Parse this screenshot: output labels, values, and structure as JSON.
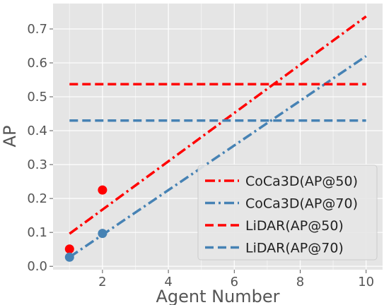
{
  "chart_data": {
    "type": "line",
    "title": "",
    "xlabel": "Agent Number",
    "ylabel": "AP",
    "xlim": [
      0.5,
      10.5
    ],
    "ylim": [
      -0.01,
      0.775
    ],
    "x_ticks": [
      2,
      4,
      6,
      8,
      10
    ],
    "x_tick_labels": [
      "2",
      "4",
      "6",
      "8",
      "10"
    ],
    "y_ticks": [
      0.0,
      0.1,
      0.2,
      0.3,
      0.4,
      0.5,
      0.6,
      0.7
    ],
    "y_tick_labels": [
      "0.0",
      "0.1",
      "0.2",
      "0.3",
      "0.4",
      "0.5",
      "0.6",
      "0.7"
    ],
    "grid": true,
    "legend_position": "lower-right",
    "series": [
      {
        "name": "CoCa3D(AP@50)",
        "style": "dashdot",
        "color": "#ff0000",
        "x": [
          1,
          10
        ],
        "y": [
          0.096,
          0.737
        ]
      },
      {
        "name": "CoCa3D(AP@70)",
        "style": "dashdot",
        "color": "#4682b4",
        "x": [
          1,
          10
        ],
        "y": [
          0.027,
          0.62
        ]
      },
      {
        "name": "LiDAR(AP@50)",
        "style": "dashed",
        "color": "#ff0000",
        "x": [
          1,
          10
        ],
        "y": [
          0.537,
          0.537
        ]
      },
      {
        "name": "LiDAR(AP@70)",
        "style": "dashed",
        "color": "#4682b4",
        "x": [
          1,
          10
        ],
        "y": [
          0.43,
          0.43
        ]
      }
    ],
    "points": [
      {
        "color": "#ff0000",
        "x": [
          1,
          2
        ],
        "y": [
          0.051,
          0.225
        ]
      },
      {
        "color": "#4682b4",
        "x": [
          1,
          2
        ],
        "y": [
          0.027,
          0.097
        ]
      }
    ]
  }
}
